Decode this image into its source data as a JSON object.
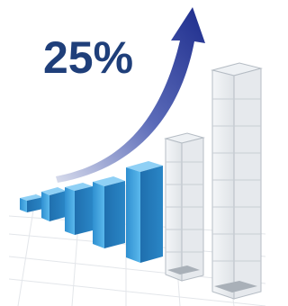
{
  "headline": "25%"
}
